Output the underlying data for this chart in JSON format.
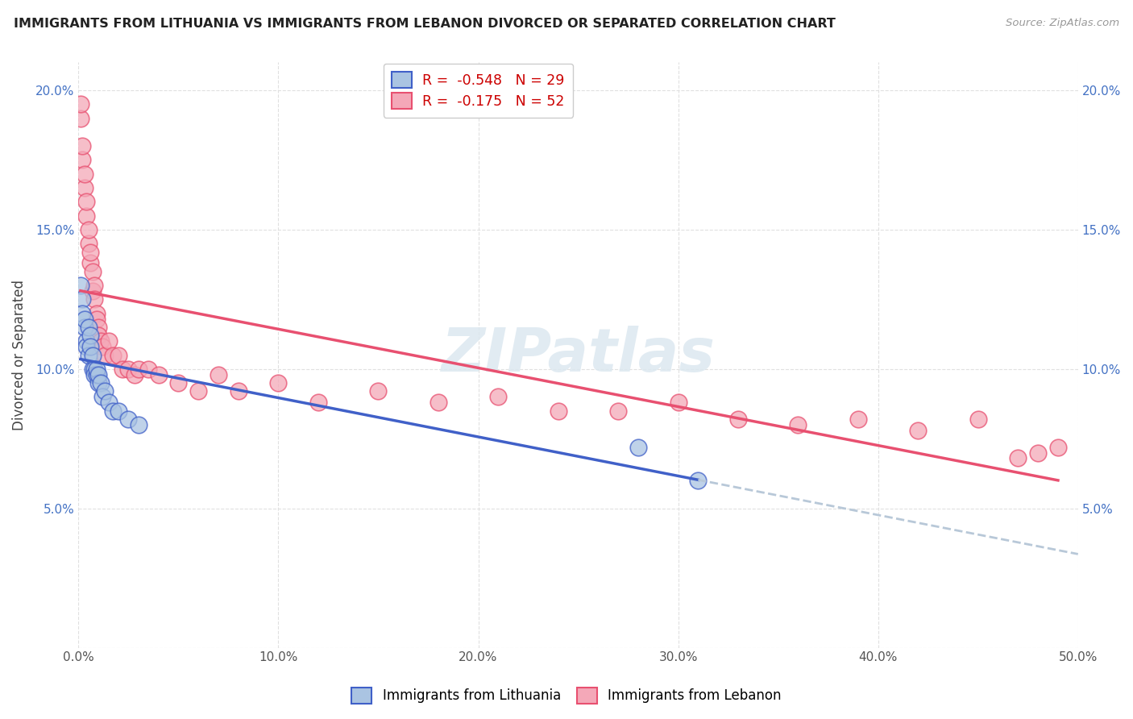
{
  "title": "IMMIGRANTS FROM LITHUANIA VS IMMIGRANTS FROM LEBANON DIVORCED OR SEPARATED CORRELATION CHART",
  "source": "Source: ZipAtlas.com",
  "ylabel": "Divorced or Separated",
  "legend_labels": [
    "Immigrants from Lithuania",
    "Immigrants from Lebanon"
  ],
  "r_lithuania": -0.548,
  "n_lithuania": 29,
  "r_lebanon": -0.175,
  "n_lebanon": 52,
  "xlim": [
    0.0,
    0.5
  ],
  "ylim": [
    0.0,
    0.21
  ],
  "xticks": [
    0.0,
    0.1,
    0.2,
    0.3,
    0.4,
    0.5
  ],
  "yticks": [
    0.0,
    0.05,
    0.1,
    0.15,
    0.2
  ],
  "xticklabels": [
    "0.0%",
    "10.0%",
    "20.0%",
    "30.0%",
    "40.0%",
    "50.0%"
  ],
  "yticklabels_left": [
    "",
    "5.0%",
    "10.0%",
    "15.0%",
    "20.0%"
  ],
  "yticklabels_right": [
    "",
    "5.0%",
    "10.0%",
    "15.0%",
    "20.0%"
  ],
  "color_lithuania": "#aac4e2",
  "color_lebanon": "#f4a8b8",
  "trendline_color_lithuania": "#4060c8",
  "trendline_color_lebanon": "#e85070",
  "trendline_color_extrapolated": "#b8c8d8",
  "watermark": "ZIPatlas",
  "lithuania_x": [
    0.001,
    0.002,
    0.002,
    0.003,
    0.003,
    0.004,
    0.004,
    0.005,
    0.005,
    0.006,
    0.006,
    0.007,
    0.007,
    0.008,
    0.008,
    0.009,
    0.009,
    0.01,
    0.01,
    0.011,
    0.012,
    0.013,
    0.015,
    0.017,
    0.02,
    0.025,
    0.03,
    0.28,
    0.31
  ],
  "lithuania_y": [
    0.13,
    0.125,
    0.12,
    0.115,
    0.118,
    0.11,
    0.108,
    0.115,
    0.105,
    0.112,
    0.108,
    0.1,
    0.105,
    0.1,
    0.098,
    0.098,
    0.1,
    0.095,
    0.098,
    0.095,
    0.09,
    0.092,
    0.088,
    0.085,
    0.085,
    0.082,
    0.08,
    0.072,
    0.06
  ],
  "lebanon_x": [
    0.001,
    0.001,
    0.002,
    0.002,
    0.003,
    0.003,
    0.004,
    0.004,
    0.005,
    0.005,
    0.006,
    0.006,
    0.007,
    0.007,
    0.008,
    0.008,
    0.009,
    0.009,
    0.01,
    0.01,
    0.011,
    0.012,
    0.013,
    0.015,
    0.017,
    0.02,
    0.022,
    0.025,
    0.028,
    0.03,
    0.035,
    0.04,
    0.05,
    0.06,
    0.07,
    0.08,
    0.1,
    0.12,
    0.15,
    0.18,
    0.21,
    0.24,
    0.27,
    0.3,
    0.33,
    0.36,
    0.39,
    0.42,
    0.45,
    0.47,
    0.48,
    0.49
  ],
  "lebanon_y": [
    0.19,
    0.195,
    0.175,
    0.18,
    0.165,
    0.17,
    0.155,
    0.16,
    0.145,
    0.15,
    0.138,
    0.142,
    0.135,
    0.128,
    0.13,
    0.125,
    0.12,
    0.118,
    0.115,
    0.112,
    0.11,
    0.108,
    0.105,
    0.11,
    0.105,
    0.105,
    0.1,
    0.1,
    0.098,
    0.1,
    0.1,
    0.098,
    0.095,
    0.092,
    0.098,
    0.092,
    0.095,
    0.088,
    0.092,
    0.088,
    0.09,
    0.085,
    0.085,
    0.088,
    0.082,
    0.08,
    0.082,
    0.078,
    0.082,
    0.068,
    0.07,
    0.072
  ],
  "background_color": "#ffffff",
  "grid_color": "#e0e0e0"
}
